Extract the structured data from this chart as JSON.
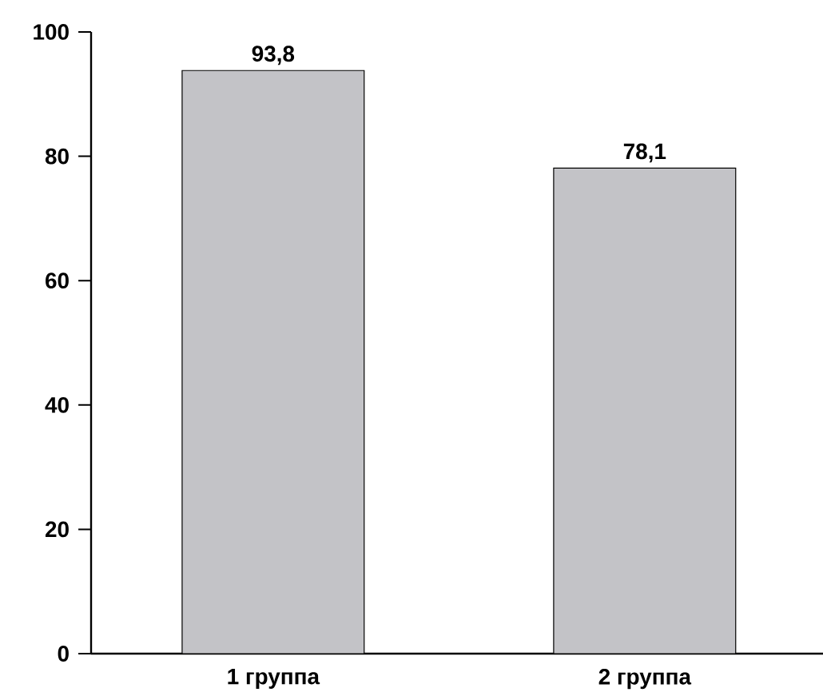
{
  "chart_data": {
    "type": "bar",
    "categories": [
      "1 группа",
      "2 группа"
    ],
    "values": [
      93.8,
      78.1
    ],
    "value_labels": [
      "93,8",
      "78,1"
    ],
    "color": "#c3c3c7",
    "ylim": [
      0,
      100
    ],
    "yticks": [
      0,
      20,
      40,
      60,
      80,
      100
    ]
  }
}
